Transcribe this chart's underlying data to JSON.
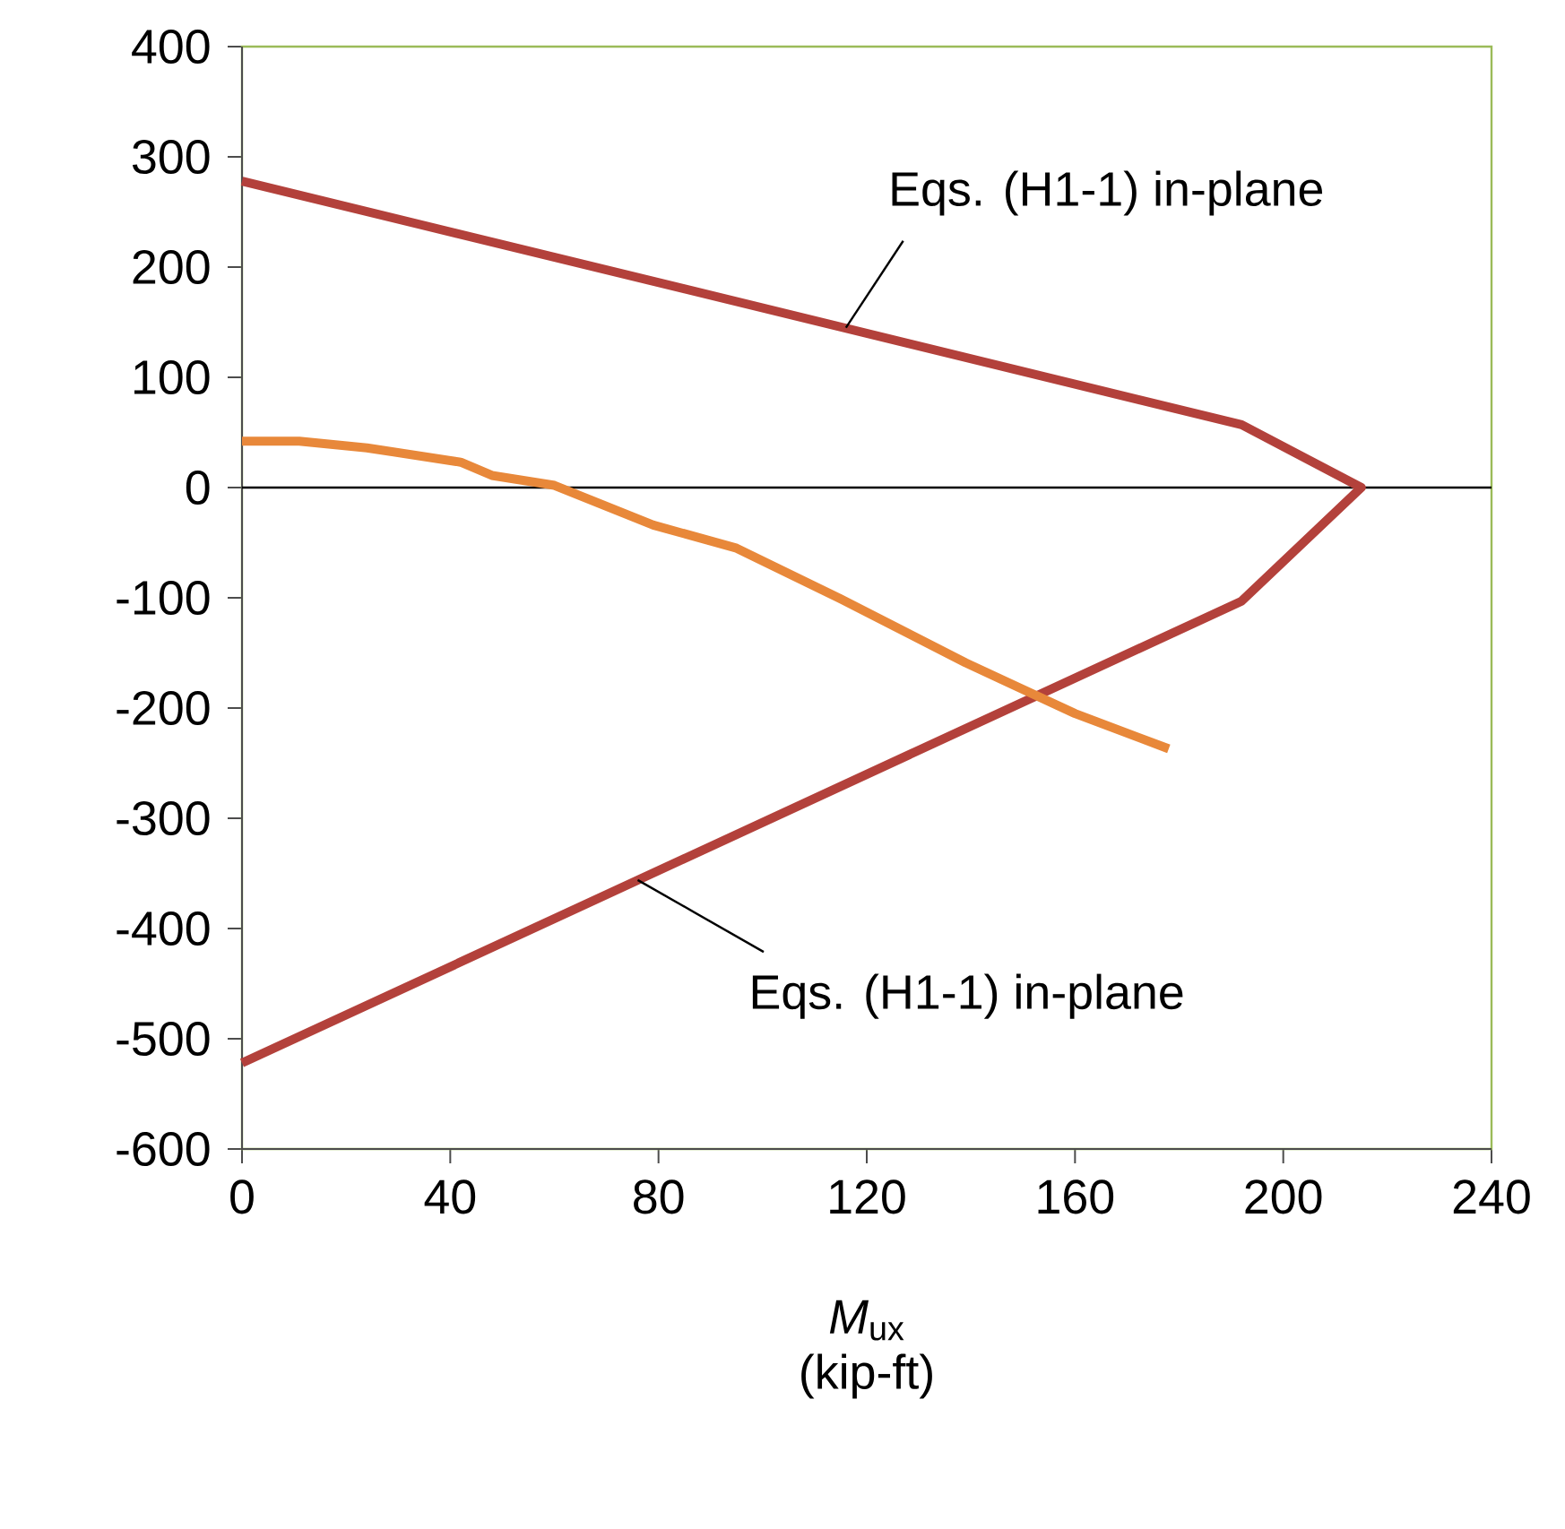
{
  "chart_data": {
    "type": "line",
    "xlabel": "*M*$_{ux}$ (kip-ft)",
    "xlim": [
      0,
      240
    ],
    "xticks": [
      0,
      40,
      80,
      120,
      160,
      200,
      240
    ],
    "ylim": [
      -600,
      400
    ],
    "yticks": [
      -600,
      -500,
      -400,
      -300,
      -200,
      -100,
      0,
      100,
      200,
      300,
      400
    ],
    "series": [
      {
        "color": "#b3413b",
        "x": [
          0,
          192,
          215,
          192,
          0
        ],
        "values": [
          278,
          57,
          0,
          -103,
          -522
        ]
      },
      {
        "color": "#e8883a",
        "x": [
          0,
          11,
          24,
          42,
          48,
          60,
          79,
          95,
          115,
          139,
          160,
          178
        ],
        "values": [
          42,
          42,
          36,
          23,
          11,
          2,
          -34,
          -55,
          -101,
          -159,
          -205,
          -237
        ]
      }
    ],
    "ref_lines": [
      {
        "axis": "y",
        "value": 0,
        "color": "#000000"
      }
    ],
    "annotations": [
      {
        "text": "Eqs. (H1-1) in-plane",
        "x": 116,
        "y": 145
      },
      {
        "text": "Eqs. (H1-1) in-plane",
        "x": 76,
        "y": -356
      }
    ]
  }
}
